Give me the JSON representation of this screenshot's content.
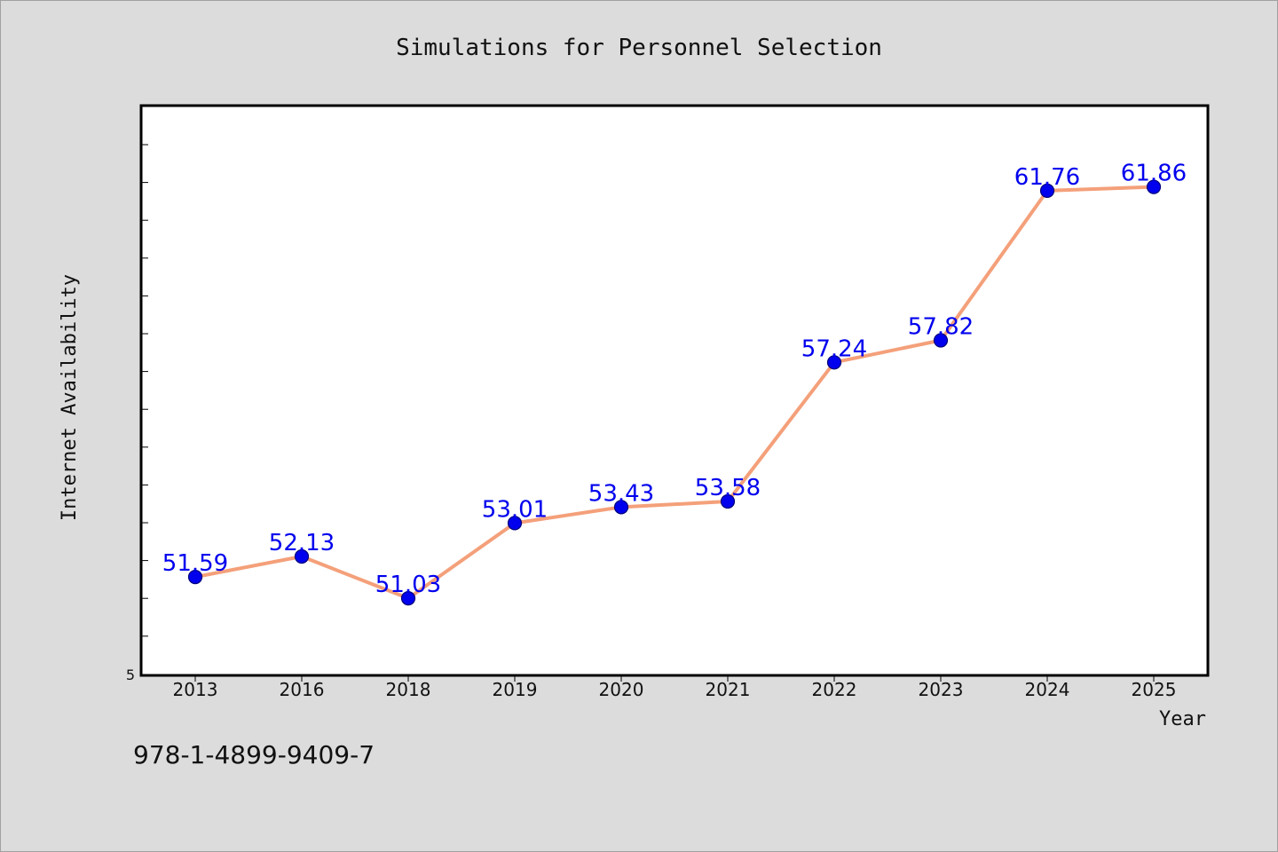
{
  "chart_data": {
    "type": "line",
    "title": "Simulations for Personnel Selection",
    "xlabel": "Year",
    "ylabel": "Internet Availability",
    "categories": [
      "2013",
      "2016",
      "2018",
      "2019",
      "2020",
      "2021",
      "2022",
      "2023",
      "2024",
      "2025"
    ],
    "series": [
      {
        "values": [
          51.59,
          52.13,
          51.03,
          53.01,
          53.43,
          53.58,
          57.24,
          57.82,
          61.76,
          61.86
        ]
      }
    ],
    "ylim": [
      49.0,
      64.0
    ],
    "y_tick_labels": [
      "5"
    ],
    "line_color": "#f4a07a",
    "marker_color": "#0000ee",
    "label_color": "#0000ee",
    "grid": false,
    "legend": "none"
  },
  "footer": {
    "isbn": "978-1-4899-9409-7"
  }
}
